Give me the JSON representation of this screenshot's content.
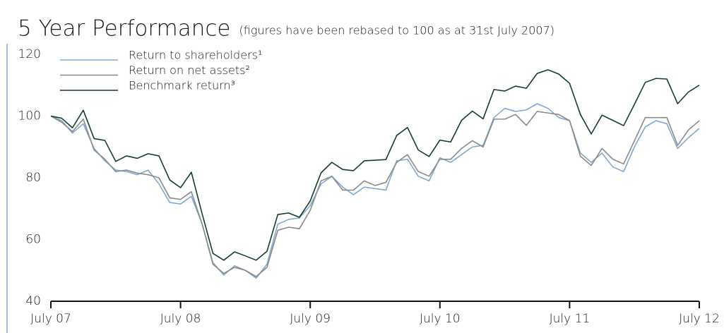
{
  "chart_data": {
    "type": "line",
    "title": "5 Year Performance",
    "subtitle": "(figures have been rebased to 100 as at 31st July 2007)",
    "categories": [
      "July 07",
      null,
      null,
      null,
      null,
      null,
      null,
      null,
      null,
      null,
      null,
      null,
      "July 08",
      null,
      null,
      null,
      null,
      null,
      null,
      null,
      null,
      null,
      null,
      null,
      "July 09",
      null,
      null,
      null,
      null,
      null,
      null,
      null,
      null,
      null,
      null,
      null,
      "July 10",
      null,
      null,
      null,
      null,
      null,
      null,
      null,
      null,
      null,
      null,
      null,
      "July 11",
      null,
      null,
      null,
      null,
      null,
      null,
      null,
      null,
      null,
      null,
      null,
      "July 12"
    ],
    "series": [
      {
        "name": "Return to shareholders¹",
        "color": "#7fa9d3",
        "values": [
          100,
          98.5,
          94.5,
          97.5,
          89.5,
          85.5,
          82.5,
          82,
          81,
          82.5,
          78,
          72,
          71.5,
          74,
          65,
          52.5,
          48.5,
          51.5,
          50,
          47.5,
          52,
          65,
          66.5,
          67,
          71,
          78,
          80.5,
          77,
          74.5,
          77,
          76.5,
          76,
          85.5,
          86,
          80.5,
          79,
          86.5,
          85,
          87.5,
          90,
          90.5,
          99.5,
          102.5,
          101.5,
          102,
          104,
          102.5,
          99.5,
          98.5,
          88,
          85,
          88,
          83.5,
          82,
          90,
          96.5,
          98.5,
          97.5,
          89.5,
          93,
          96
        ]
      },
      {
        "name": "Return on net assets²",
        "color": "#8a8a8a",
        "values": [
          100,
          98,
          95,
          99,
          89,
          86,
          82,
          82.5,
          81.5,
          81,
          80,
          73.5,
          73,
          75.5,
          65,
          52,
          49,
          51,
          50,
          48,
          51,
          63,
          64,
          63.5,
          69.5,
          79,
          80.5,
          76,
          76,
          79,
          77.5,
          78.5,
          85,
          87.5,
          82,
          80.5,
          86,
          86,
          89.5,
          92,
          90,
          99,
          99,
          100.5,
          97,
          101.5,
          101,
          100.5,
          98.5,
          87,
          84,
          89.5,
          86,
          84.5,
          92,
          99.5,
          99.5,
          99.5,
          90.5,
          95.5,
          98.5
        ]
      },
      {
        "name": "Benchmark return³",
        "color": "#123f2c",
        "values": [
          100,
          99.3,
          96.2,
          101.9,
          92.7,
          92.1,
          85.3,
          87.1,
          86.3,
          87.8,
          87.1,
          79.3,
          76.8,
          81.8,
          68.3,
          55.5,
          53.3,
          56,
          54.7,
          53.3,
          56.2,
          68.1,
          68.6,
          67.2,
          72.5,
          81.6,
          85,
          82.7,
          82.3,
          85.5,
          85.7,
          85.9,
          93.7,
          96.3,
          89,
          86.9,
          92.2,
          91.6,
          98.6,
          101.6,
          99.1,
          108.6,
          108.1,
          109.7,
          109,
          113.8,
          115,
          113.6,
          110.6,
          100.5,
          94.2,
          100.3,
          98.6,
          96.9,
          103.8,
          110.9,
          112.2,
          112,
          104,
          107.8,
          110
        ]
      }
    ],
    "ylim": [
      40,
      120
    ],
    "yticks": [
      40,
      60,
      80,
      100,
      120
    ],
    "legend": "upper left",
    "grid": false
  }
}
